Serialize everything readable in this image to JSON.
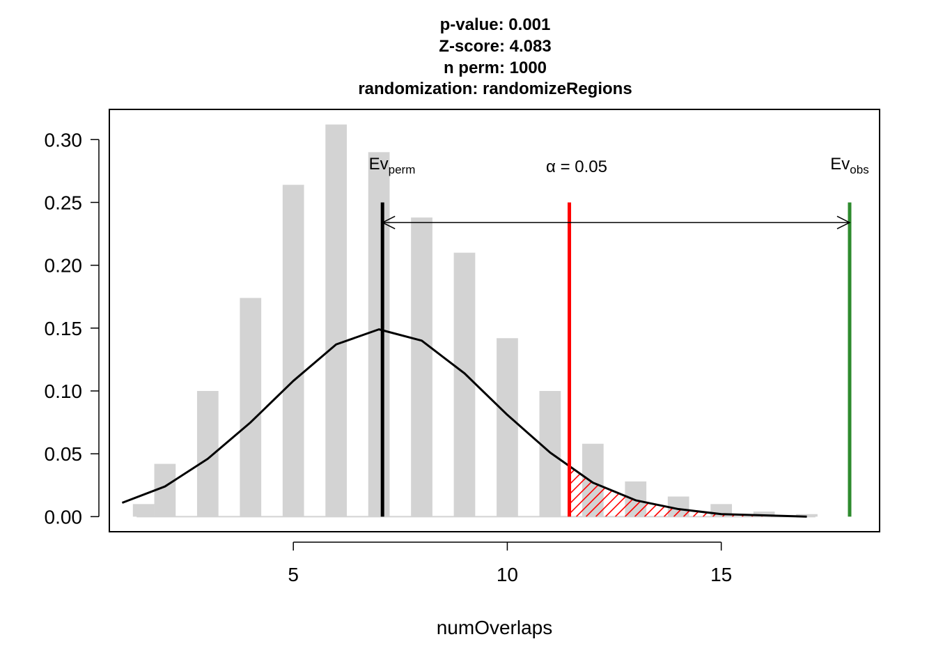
{
  "chart_data": {
    "type": "bar",
    "title_lines": [
      "p-value:  0.001",
      "Z-score:  4.083",
      "n perm:  1000",
      "randomization:  randomizeRegions"
    ],
    "xlabel": "numOverlaps",
    "ylabel": "",
    "xlim": [
      0.7,
      18.7
    ],
    "ylim": [
      -0.012,
      0.324
    ],
    "x_ticks": [
      5,
      10,
      15
    ],
    "x_tick_labels": [
      "5",
      "10",
      "15"
    ],
    "y_ticks": [
      0.0,
      0.05,
      0.1,
      0.15,
      0.2,
      0.25,
      0.3
    ],
    "y_tick_labels": [
      "0.00",
      "0.05",
      "0.10",
      "0.15",
      "0.20",
      "0.25",
      "0.30"
    ],
    "histogram": {
      "name": "permuted",
      "color": "#d3d3d3",
      "bin_width": 0.5,
      "bars": [
        {
          "x": 1.5,
          "density": 0.01
        },
        {
          "x": 2.0,
          "density": 0.042
        },
        {
          "x": 3.0,
          "density": 0.1
        },
        {
          "x": 4.0,
          "density": 0.174
        },
        {
          "x": 5.0,
          "density": 0.264
        },
        {
          "x": 6.0,
          "density": 0.312
        },
        {
          "x": 7.0,
          "density": 0.29
        },
        {
          "x": 8.0,
          "density": 0.238
        },
        {
          "x": 9.0,
          "density": 0.21
        },
        {
          "x": 10.0,
          "density": 0.142
        },
        {
          "x": 11.0,
          "density": 0.1
        },
        {
          "x": 12.0,
          "density": 0.058
        },
        {
          "x": 13.0,
          "density": 0.028
        },
        {
          "x": 14.0,
          "density": 0.016
        },
        {
          "x": 15.0,
          "density": 0.01
        },
        {
          "x": 16.0,
          "density": 0.004
        },
        {
          "x": 17.0,
          "density": 0.002
        }
      ]
    },
    "normal_curve": {
      "color": "#000000",
      "points": [
        {
          "x": 1,
          "y": 0.011
        },
        {
          "x": 2,
          "y": 0.024
        },
        {
          "x": 3,
          "y": 0.046
        },
        {
          "x": 4,
          "y": 0.075
        },
        {
          "x": 5,
          "y": 0.108
        },
        {
          "x": 6,
          "y": 0.137
        },
        {
          "x": 7,
          "y": 0.149
        },
        {
          "x": 8,
          "y": 0.14
        },
        {
          "x": 9,
          "y": 0.114
        },
        {
          "x": 10,
          "y": 0.081
        },
        {
          "x": 11,
          "y": 0.051
        },
        {
          "x": 12,
          "y": 0.027
        },
        {
          "x": 13,
          "y": 0.013
        },
        {
          "x": 14,
          "y": 0.006
        },
        {
          "x": 15,
          "y": 0.002
        },
        {
          "x": 16,
          "y": 0.001
        },
        {
          "x": 17,
          "y": 0.0
        }
      ]
    },
    "lines": [
      {
        "name": "Ev_perm",
        "label_main": "Ev",
        "label_sub": "perm",
        "x": 7.083,
        "color": "#000000",
        "y_top": 0.25
      },
      {
        "name": "alpha",
        "label_main": "α = 0.05",
        "label_sub": "",
        "x": 11.45,
        "color": "#ff0000",
        "y_top": 0.25
      },
      {
        "name": "Ev_obs",
        "label_main": "Ev",
        "label_sub": "obs",
        "x": 18.0,
        "color": "#2e8b2e",
        "y_top": 0.25
      }
    ],
    "arrow": {
      "from_x": 7.083,
      "to_x": 18.0,
      "y": 0.234
    },
    "hatch_region": {
      "from_x": 11.45,
      "color": "#ff0000"
    },
    "grid": false,
    "legend": "none"
  }
}
